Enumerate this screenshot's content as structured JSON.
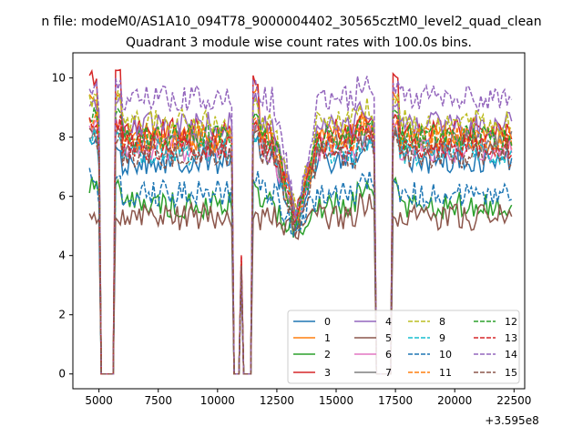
{
  "suptitle": "n file: modeM0/AS1A10_094T78_9000004402_30565cztM0_level2_quad_clean",
  "chart_data": {
    "type": "line",
    "title": "Quadrant 3 module wise count rates with 100.0s bins.",
    "xlabel": "",
    "ylabel": "",
    "x_offset_label": "+3.595e8",
    "xlim": [
      3900,
      22950
    ],
    "ylim": [
      -0.5,
      10.85
    ],
    "xticks": [
      5000,
      7500,
      10000,
      12500,
      15000,
      17500,
      20000,
      22500
    ],
    "yticks": [
      0,
      2,
      4,
      6,
      8,
      10
    ],
    "grid": false,
    "legend": {
      "placement": "lower-right",
      "columns": 4
    },
    "series": [
      {
        "name": "0",
        "color": "#1f77b4",
        "dash": "solid",
        "level": 7.2,
        "edge": 7.8
      },
      {
        "name": "1",
        "color": "#ff7f0e",
        "dash": "solid",
        "level": 8.0,
        "edge": 9.5
      },
      {
        "name": "2",
        "color": "#2ca02c",
        "dash": "solid",
        "level": 5.7,
        "edge": 6.4
      },
      {
        "name": "3",
        "color": "#d62728",
        "dash": "solid",
        "level": 8.2,
        "edge": 10.0
      },
      {
        "name": "4",
        "color": "#9467bd",
        "dash": "solid",
        "level": 8.4,
        "edge": 9.2
      },
      {
        "name": "5",
        "color": "#8c564b",
        "dash": "solid",
        "level": 5.3,
        "edge": 5.2
      },
      {
        "name": "6",
        "color": "#e377c2",
        "dash": "solid",
        "level": 7.6,
        "edge": 8.4
      },
      {
        "name": "7",
        "color": "#7f7f7f",
        "dash": "solid",
        "level": 7.8,
        "edge": 8.2
      },
      {
        "name": "8",
        "color": "#bcbd22",
        "dash": "dashed",
        "level": 8.5,
        "edge": 9.3
      },
      {
        "name": "9",
        "color": "#17becf",
        "dash": "dashed",
        "level": 7.5,
        "edge": 8.0
      },
      {
        "name": "10",
        "color": "#1f77b4",
        "dash": "dashed",
        "level": 6.1,
        "edge": 6.7
      },
      {
        "name": "11",
        "color": "#ff7f0e",
        "dash": "dashed",
        "level": 7.9,
        "edge": 8.6
      },
      {
        "name": "12",
        "color": "#2ca02c",
        "dash": "dashed",
        "level": 8.0,
        "edge": 8.8
      },
      {
        "name": "13",
        "color": "#d62728",
        "dash": "dashed",
        "level": 7.7,
        "edge": 8.5
      },
      {
        "name": "14",
        "color": "#9467bd",
        "dash": "dashed",
        "level": 9.3,
        "edge": 9.7
      },
      {
        "name": "15",
        "color": "#8c564b",
        "dash": "dashed",
        "level": 7.4,
        "edge": 8.0
      }
    ],
    "x_start": 4600,
    "x_end": 22400,
    "x_step": 100,
    "gaps": [
      [
        5000,
        5700
      ],
      [
        10600,
        11500
      ],
      [
        16600,
        17400
      ]
    ],
    "spike": {
      "x": 11000,
      "value": 4.1
    }
  }
}
